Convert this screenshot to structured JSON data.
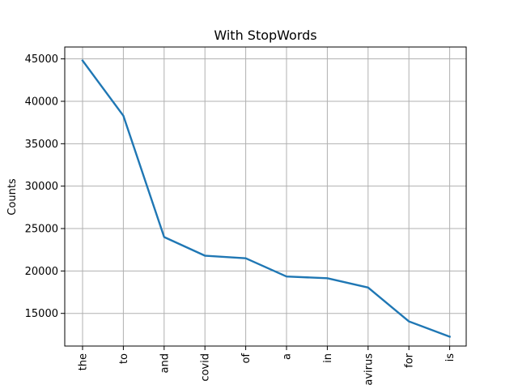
{
  "chart_data": {
    "type": "line",
    "title": "With StopWords",
    "xlabel": "",
    "ylabel": "Counts",
    "categories": [
      "the",
      "to",
      "and",
      "covid",
      "of",
      "a",
      "in",
      "avirus",
      "for",
      "is"
    ],
    "series": [
      {
        "values": [
          44800,
          38300,
          24000,
          21800,
          21500,
          19350,
          19150,
          18050,
          14050,
          12250
        ]
      }
    ],
    "yticks": [
      15000,
      20000,
      25000,
      30000,
      35000,
      40000,
      45000
    ],
    "ylim": [
      11150,
      46400
    ],
    "grid": true,
    "line_color": "#1f77b4"
  }
}
